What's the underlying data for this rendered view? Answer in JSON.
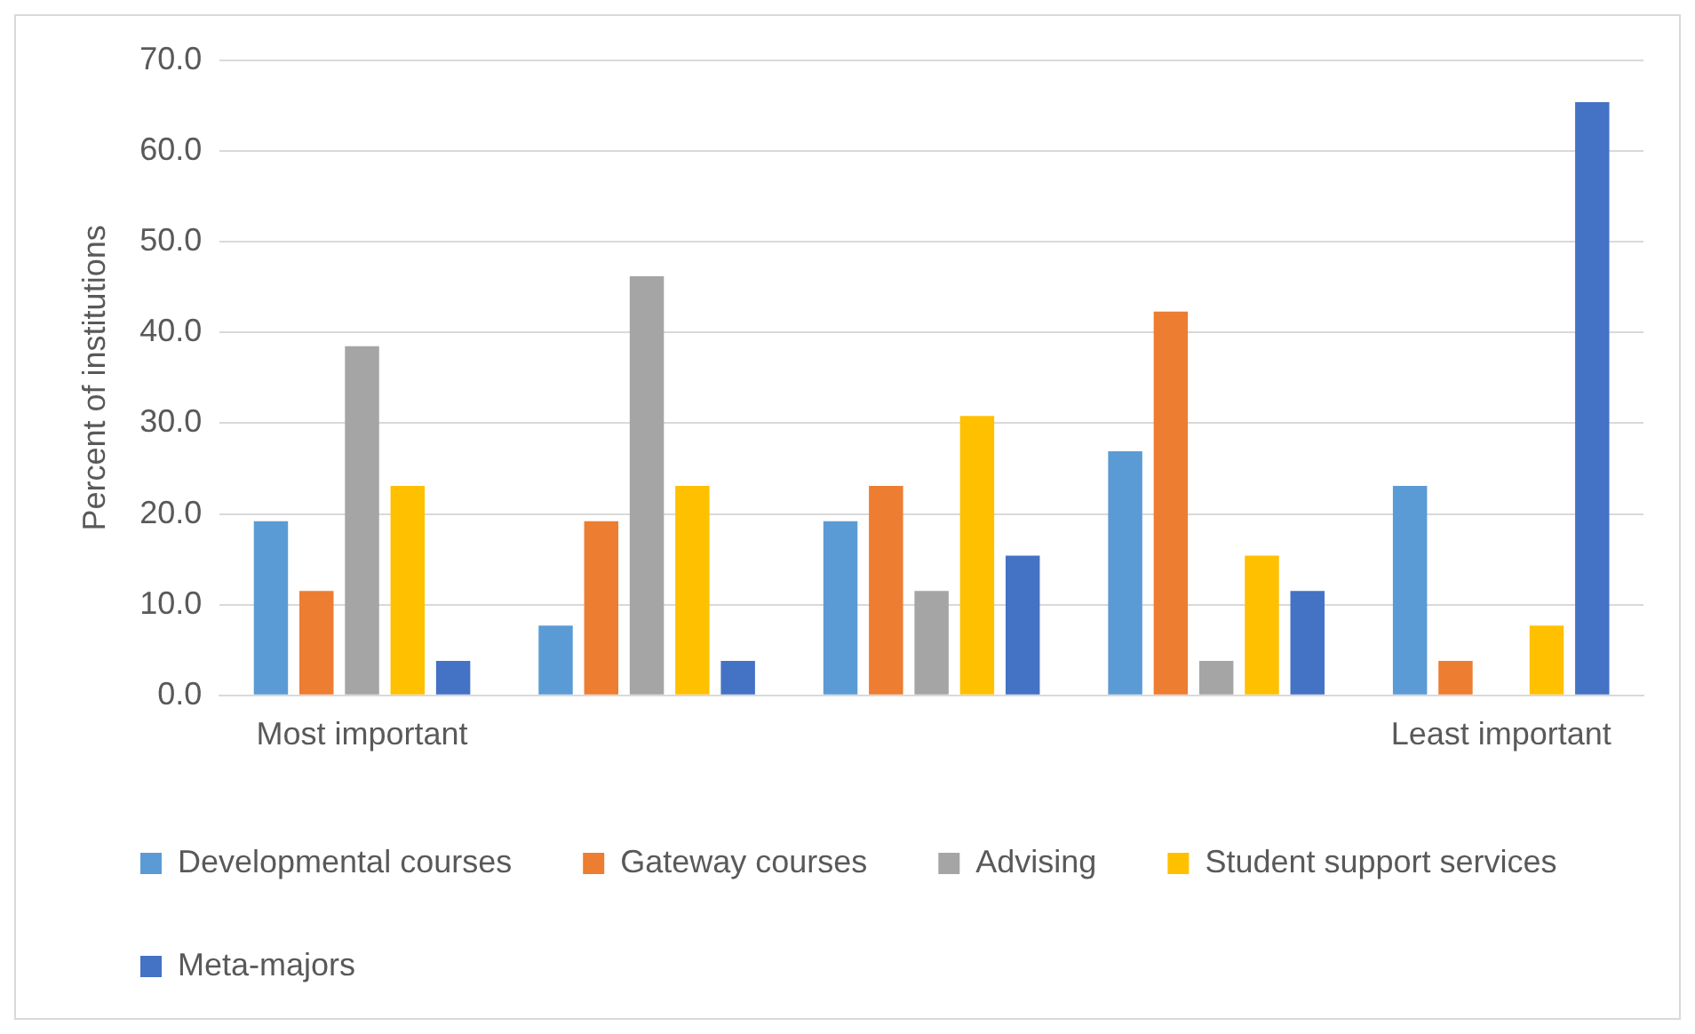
{
  "chart_data": {
    "type": "bar",
    "ylabel": "Percent of institutions",
    "categories": [
      "Most important",
      null,
      null,
      null,
      "Least important"
    ],
    "series": [
      {
        "name": "Developmental courses",
        "color": "#5b9bd5",
        "values": [
          19.2,
          7.7,
          19.2,
          26.9,
          23.1
        ]
      },
      {
        "name": "Gateway courses",
        "color": "#ed7d31",
        "values": [
          11.5,
          19.2,
          23.1,
          42.3,
          3.8
        ]
      },
      {
        "name": "Advising",
        "color": "#a5a5a5",
        "values": [
          38.5,
          46.2,
          11.5,
          3.8,
          0
        ]
      },
      {
        "name": "Student support services",
        "color": "#ffc000",
        "values": [
          23.1,
          23.1,
          30.8,
          15.4,
          7.7
        ]
      },
      {
        "name": "Meta-majors",
        "color": "#4472c4",
        "values": [
          3.8,
          3.8,
          15.4,
          11.5,
          65.4
        ]
      }
    ],
    "ylim": [
      0,
      70
    ],
    "yticks": [
      {
        "value": 0,
        "label": "0.0"
      },
      {
        "value": 10,
        "label": "10.0"
      },
      {
        "value": 20,
        "label": "20.0"
      },
      {
        "value": 30,
        "label": "30.0"
      },
      {
        "value": 40,
        "label": "40.0"
      },
      {
        "value": 50,
        "label": "50.0"
      },
      {
        "value": 60,
        "label": "60.0"
      },
      {
        "value": 70,
        "label": "70.0"
      }
    ],
    "grid": "y",
    "legend": "bottom"
  }
}
